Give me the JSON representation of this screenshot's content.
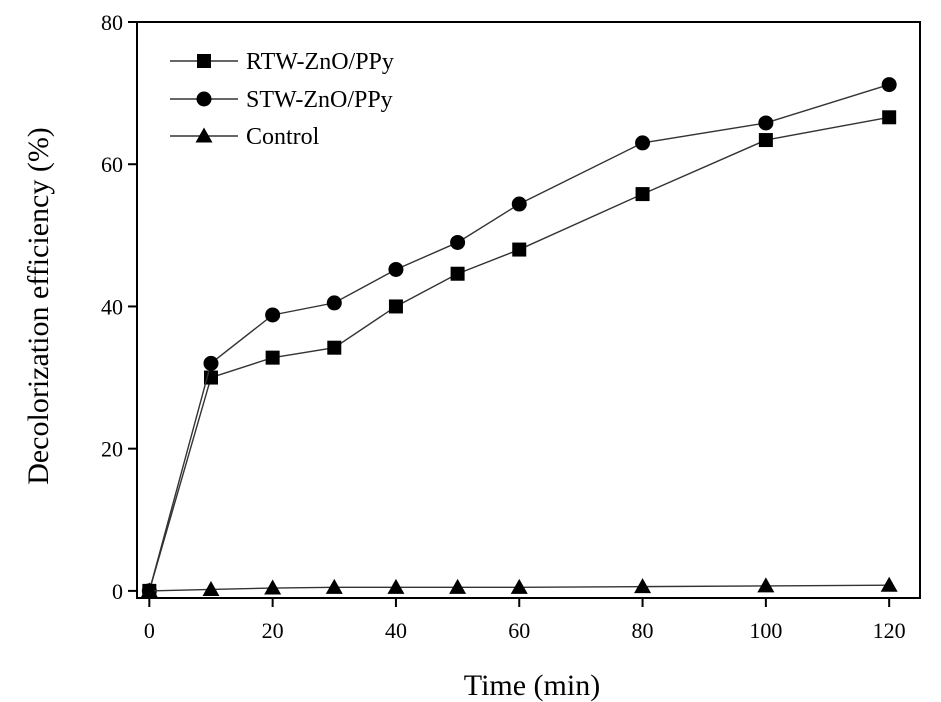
{
  "chart_data": {
    "type": "line",
    "title": "",
    "xlabel": "Time (min)",
    "ylabel": "Decolorization efficiency (%)",
    "xlim": [
      -2,
      125
    ],
    "ylim": [
      -1,
      80
    ],
    "x_ticks": [
      0,
      20,
      40,
      60,
      80,
      100,
      120
    ],
    "y_ticks": [
      0,
      20,
      40,
      60,
      80
    ],
    "x_tick_labels": [
      "0",
      "20",
      "40",
      "60",
      "80",
      "100",
      "120"
    ],
    "y_tick_labels": [
      "0",
      "20",
      "40",
      "60",
      "80"
    ],
    "grid": false,
    "legend_position": "top-left",
    "x": [
      0,
      10,
      20,
      30,
      40,
      50,
      60,
      80,
      100,
      120
    ],
    "series": [
      {
        "name": "RTW-ZnO/PPy",
        "marker": "square",
        "values": [
          0,
          30,
          32.8,
          34.2,
          40,
          44.6,
          48,
          55.8,
          63.4,
          66.6
        ]
      },
      {
        "name": "STW-ZnO/PPy",
        "marker": "circle",
        "values": [
          0,
          32,
          38.8,
          40.5,
          45.2,
          49,
          54.4,
          63,
          65.8,
          71.2
        ]
      },
      {
        "name": "Control",
        "marker": "triangle",
        "values": [
          0,
          0.2,
          0.4,
          0.5,
          0.5,
          0.5,
          0.5,
          0.6,
          0.7,
          0.8
        ]
      }
    ],
    "colors": {
      "line": "#333333",
      "marker": "#000000",
      "axis": "#000000"
    }
  }
}
